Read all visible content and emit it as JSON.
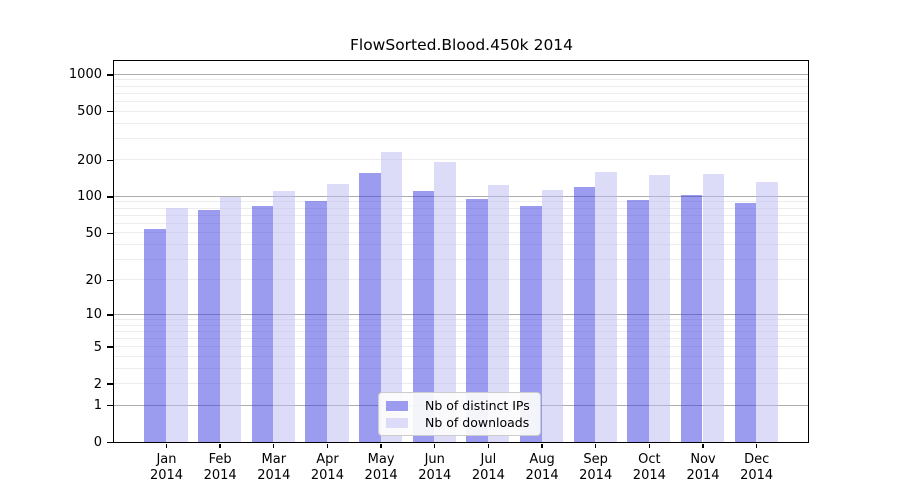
{
  "title": "FlowSorted.Blood.450k 2014",
  "chart_data": {
    "type": "bar",
    "title": "FlowSorted.Blood.450k 2014",
    "categories": [
      "Jan",
      "Feb",
      "Mar",
      "Apr",
      "May",
      "Jun",
      "Jul",
      "Aug",
      "Sep",
      "Oct",
      "Nov",
      "Dec"
    ],
    "year_label": "2014",
    "series": [
      {
        "name": "Nb of distinct IPs",
        "color": "#9b9bef",
        "fill": "rgba(55,55,225,0.5)",
        "values": [
          54,
          77,
          83,
          91,
          157,
          111,
          96,
          83,
          119,
          93,
          103,
          88
        ]
      },
      {
        "name": "Nb of downloads",
        "color": "#dcdcf8",
        "fill": "rgba(185,185,241,0.5)",
        "values": [
          80,
          98,
          110,
          126,
          230,
          190,
          124,
          112,
          160,
          150,
          152,
          132
        ]
      }
    ],
    "xlabel": "",
    "ylabel": "",
    "yticks": [
      0,
      1,
      2,
      5,
      10,
      20,
      50,
      100,
      200,
      500,
      1000
    ],
    "ylim": [
      0,
      1285
    ],
    "scale": "log1p",
    "grid": "horizontal",
    "legend_position": "inside-bottom-center",
    "colors": {
      "background": "#ffffff",
      "axis": "#000000",
      "gridline_minor": "#ececec",
      "gridline_major": "#adadad",
      "legend_border": "#cccccc"
    }
  }
}
